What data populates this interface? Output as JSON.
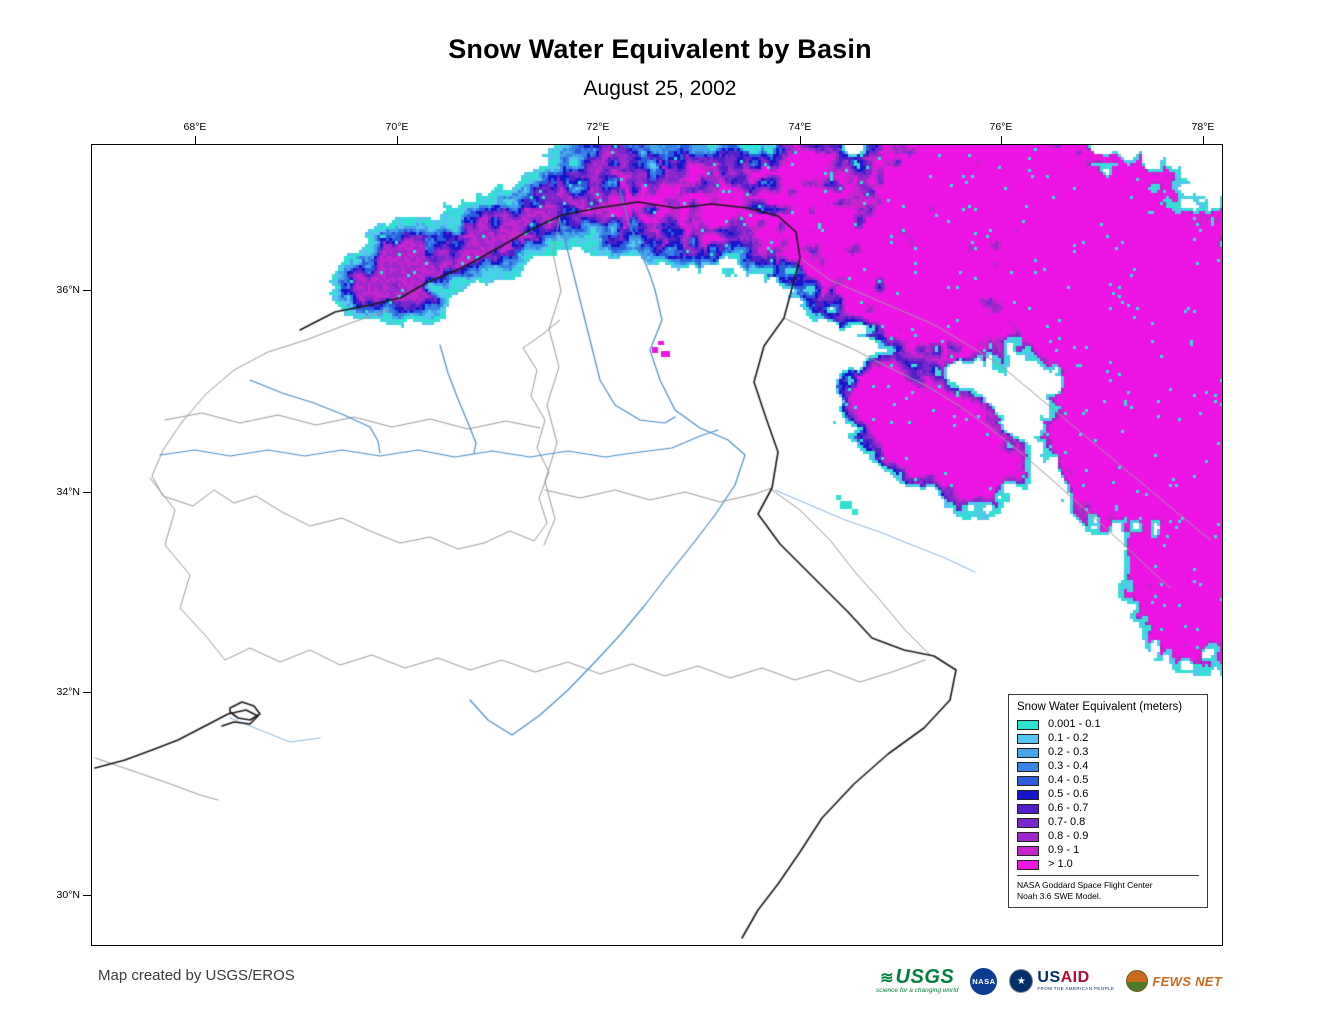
{
  "page": {
    "title": "Snow Water Equivalent by Basin",
    "subtitle": "August 25, 2002"
  },
  "map": {
    "x_ticks": [
      "68°E",
      "70°E",
      "72°E",
      "74°E",
      "76°E",
      "78°E"
    ],
    "y_ticks": [
      "36°N",
      "34°N",
      "32°N",
      "30°N"
    ]
  },
  "legend": {
    "title": "Snow Water Equivalent (meters)",
    "entries": [
      {
        "label": "0.001 - 0.1",
        "color": "#2FE2D2"
      },
      {
        "label": "0.1 - 0.2",
        "color": "#56C5F0"
      },
      {
        "label": "0.2 - 0.3",
        "color": "#44A4EC"
      },
      {
        "label": "0.3 - 0.4",
        "color": "#3884E4"
      },
      {
        "label": "0.4 - 0.5",
        "color": "#2C5CDC"
      },
      {
        "label": "0.5 - 0.6",
        "color": "#1616CC"
      },
      {
        "label": "0.6 - 0.7",
        "color": "#5120C8"
      },
      {
        "label": "0.7- 0.8",
        "color": "#7A28CC"
      },
      {
        "label": "0.8 - 0.9",
        "color": "#9E28CC"
      },
      {
        "label": "0.9 - 1",
        "color": "#C426CC"
      },
      {
        "label": "> 1.0",
        "color": "#EE14E4"
      }
    ],
    "note": [
      "NASA Goddard Space Flight Center",
      "Noah 3.6 SWE Model."
    ]
  },
  "footer": {
    "credit": "Map created by USGS/EROS",
    "logos": {
      "usgs": "USGS",
      "usgs_tagline": "science for a changing world",
      "nasa": "NASA",
      "usaid_us": "US",
      "usaid_aid": "AID",
      "usaid_tagline": "FROM THE AMERICAN PEOPLE",
      "fews": "FEWS NET"
    },
    "logo_colors": {
      "usgs_green": "#00803E",
      "nasa_blue": "#0B3D91",
      "usaid_blue": "#002F6C",
      "usaid_red": "#BA0C2F",
      "fews_orange": "#CE6A1F",
      "fews_green": "#4C7A2B"
    }
  },
  "map_colors": {
    "basin_boundary": "#1a1a1a",
    "subbasin_boundary": "#9a9a9a",
    "river": "#4a90c8",
    "river_light": "#8ab8dc"
  }
}
